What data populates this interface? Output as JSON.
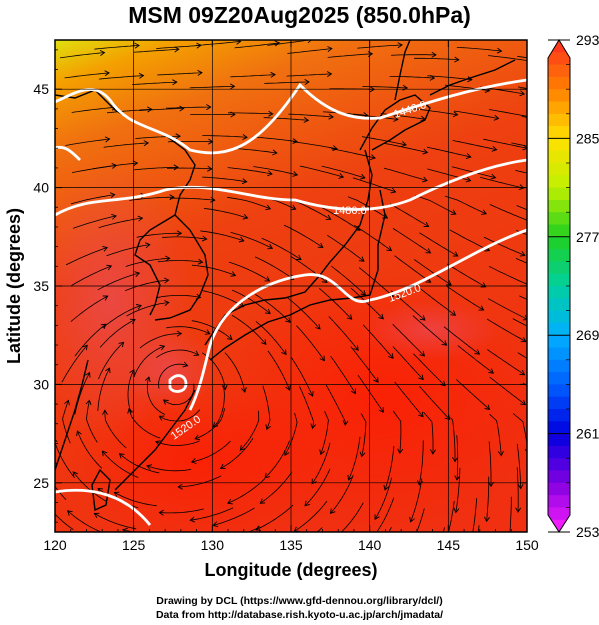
{
  "title": "MSM 09Z20Aug2025 (850.0hPa)",
  "map": {
    "xlabel": "Longitude (degrees)",
    "ylabel": "Latitude  (degrees)",
    "xlim": [
      120,
      150
    ],
    "ylim": [
      22.5,
      47.5
    ],
    "xticks": [
      "120",
      "125",
      "130",
      "135",
      "140",
      "145",
      "150"
    ],
    "yticks": [
      "25",
      "30",
      "35",
      "40",
      "45"
    ],
    "contour_labels": [
      "1440.0",
      "1480.0",
      "1520.0",
      "1520.0"
    ],
    "colors": {
      "field_warm": "#ff3000",
      "field_mid": "#e84820",
      "field_cool": "#f4a000",
      "field_north": "#dcdc10",
      "contour": "#ffffff",
      "streamline": "#000000",
      "coastline": "#000000"
    }
  },
  "colorbar": {
    "ticks": [
      "293",
      "285",
      "277",
      "269",
      "261",
      "253"
    ],
    "range": [
      253,
      293
    ],
    "stops": [
      {
        "value": 293,
        "color": "#ff3020"
      },
      {
        "value": 289,
        "color": "#ff8000"
      },
      {
        "value": 285,
        "color": "#ffe000"
      },
      {
        "value": 281,
        "color": "#c0f000"
      },
      {
        "value": 277,
        "color": "#20d020"
      },
      {
        "value": 273,
        "color": "#00d0a0"
      },
      {
        "value": 269,
        "color": "#00b0ff"
      },
      {
        "value": 265,
        "color": "#0060ff"
      },
      {
        "value": 261,
        "color": "#0000e0"
      },
      {
        "value": 257,
        "color": "#8000e0"
      },
      {
        "value": 253,
        "color": "#ff20ff"
      }
    ]
  },
  "footer": {
    "line1": "Drawing by DCL (https://www.gfd-dennou.org/library/dcl/)",
    "line2": "Data from http://database.rish.kyoto-u.ac.jp/arch/jmadata/"
  }
}
